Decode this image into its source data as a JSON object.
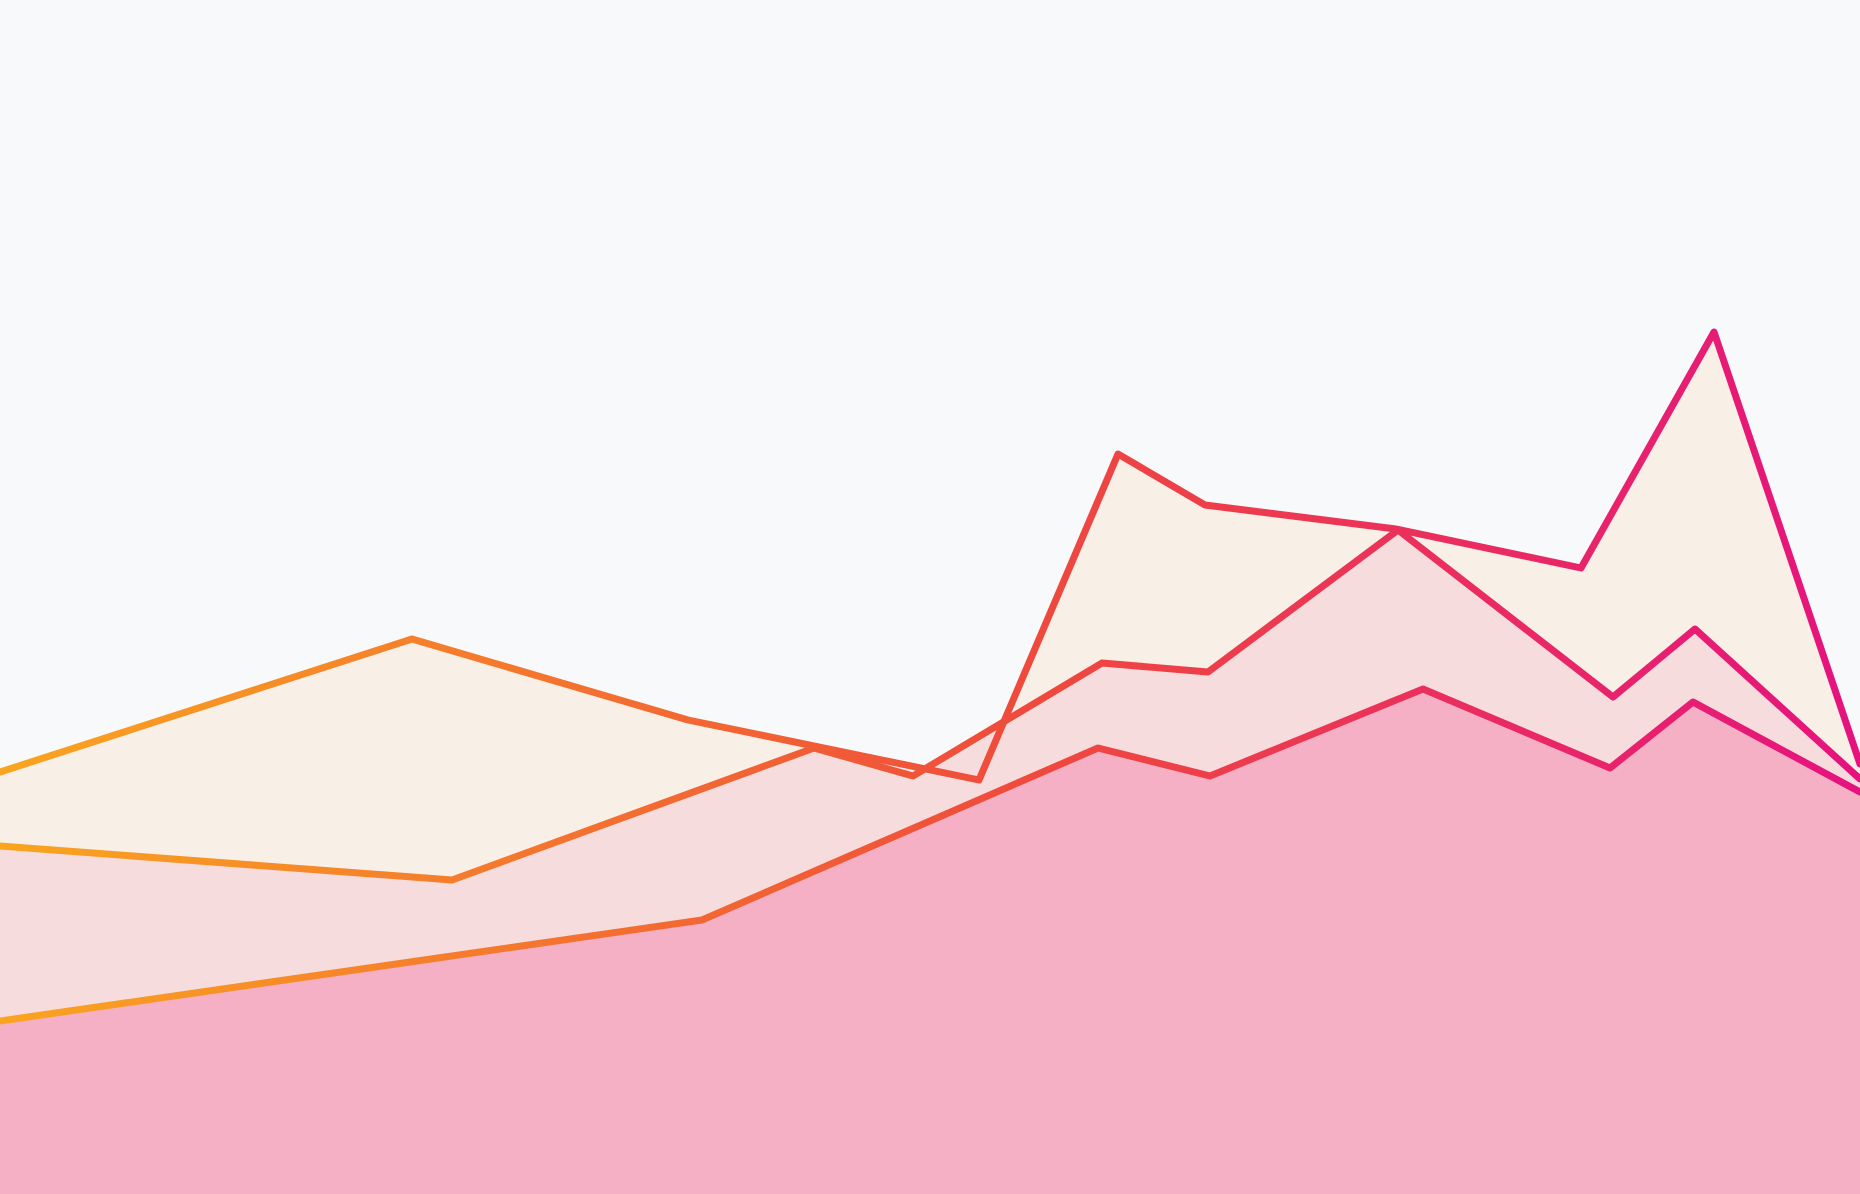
{
  "colors": {
    "background": "#f8f9fb",
    "gradient_start": "#f9a51f",
    "gradient_mid": "#ef4a3c",
    "gradient_end": "#e5127f",
    "fill_top": "#f8efe6",
    "fill_middle": "#f6dcdd",
    "fill_bottom": "#f6b0c5"
  },
  "chart_data": {
    "type": "area",
    "title": "",
    "xlabel": "",
    "ylabel": "",
    "grid": false,
    "legend": "none",
    "x_domain": [
      0,
      1860
    ],
    "y_domain": [
      0,
      1194
    ],
    "series": [
      {
        "fill_key": "fill_top",
        "points": [
          [
            0,
            422
          ],
          [
            412,
            555
          ],
          [
            688,
            474
          ],
          [
            979,
            414
          ],
          [
            1118,
            740
          ],
          [
            1205,
            689
          ],
          [
            1396,
            665
          ],
          [
            1581,
            626
          ],
          [
            1714,
            862
          ],
          [
            1860,
            430
          ]
        ]
      },
      {
        "fill_key": "fill_middle",
        "points": [
          [
            0,
            348
          ],
          [
            452,
            314
          ],
          [
            814,
            446
          ],
          [
            913,
            418
          ],
          [
            1102,
            531
          ],
          [
            1208,
            522
          ],
          [
            1398,
            664
          ],
          [
            1613,
            497
          ],
          [
            1695,
            565
          ],
          [
            1860,
            415
          ]
        ]
      },
      {
        "fill_key": "fill_bottom",
        "points": [
          [
            0,
            173
          ],
          [
            702,
            274
          ],
          [
            1098,
            446
          ],
          [
            1210,
            418
          ],
          [
            1423,
            505
          ],
          [
            1610,
            426
          ],
          [
            1693,
            492
          ],
          [
            1860,
            402
          ]
        ]
      }
    ]
  }
}
